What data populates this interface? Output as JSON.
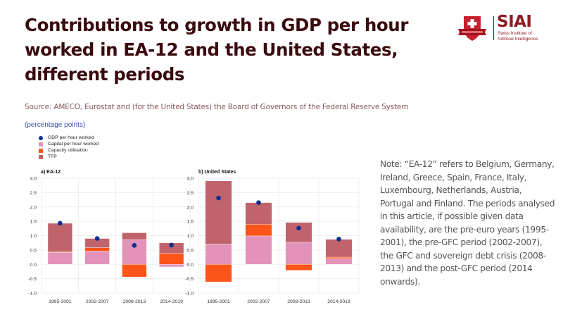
{
  "header": {
    "title": "Contributions to growth in GDP per hour worked in EA-12 and the United States, different periods",
    "source": "Source: AMECO, Eurostat and (for the United States) the Board of Governors of the Federal Reserve System",
    "units": "(percentage points)"
  },
  "logo": {
    "name": "SIAI",
    "subtitle_line1": "Swiss Institute of",
    "subtitle_line2": "Artificial Intelligence",
    "icon": "swiss-cross-shield-icon"
  },
  "note": "Note: “EA-12” refers to Belgium, Germany, Ireland, Greece, Spain, France, Italy, Luxembourg, Netherlands, Austria, Portugal and Finland. The periods analysed in this article, if possible given data availability, are the pre-euro years (1995-2001), the pre-GFC period (2002-2007), the GFC and sovereign debt crisis (2008-2013) and the post-GFC period (2014 onwards).",
  "colors": {
    "gdp": "#0a2f8f",
    "capital": "#e393b9",
    "capacity": "#fc5419",
    "tfp": "#c1636b",
    "title": "#3a0a0e",
    "brand": "#8f1a24"
  },
  "legend": [
    {
      "key": "gdp",
      "label": "GDP per hour worked",
      "marker": "dot"
    },
    {
      "key": "capital",
      "label": "Capital per hour worked",
      "marker": "square"
    },
    {
      "key": "capacity",
      "label": "Capacity utilisation",
      "marker": "square"
    },
    {
      "key": "tfp",
      "label": "TFP",
      "marker": "square"
    }
  ],
  "chart_data": [
    {
      "type": "bar",
      "stacked": true,
      "title": "a) EA-12",
      "categories": [
        "1995-2001",
        "2002-2007",
        "2008-2013",
        "2014-2019"
      ],
      "ylim": [
        -1.0,
        3.0
      ],
      "yticks": [
        "3.0",
        "2.5",
        "2.0",
        "1.5",
        "1.0",
        "0.5",
        "0.0",
        "-0.5",
        "-1.0"
      ],
      "grid": true,
      "series": [
        {
          "name": "Capital per hour worked",
          "key": "capital",
          "values": [
            0.42,
            0.46,
            0.86,
            -0.09
          ]
        },
        {
          "name": "Capacity utilisation",
          "key": "capacity",
          "values": [
            0.02,
            0.12,
            -0.44,
            0.38
          ]
        },
        {
          "name": "TFP",
          "key": "tfp",
          "values": [
            0.99,
            0.32,
            0.24,
            0.37
          ]
        }
      ],
      "points": {
        "name": "GDP per hour worked",
        "key": "gdp",
        "values": [
          1.43,
          0.9,
          0.66,
          0.67
        ]
      }
    },
    {
      "type": "bar",
      "stacked": true,
      "title": "b) United States",
      "categories": [
        "1995-2001",
        "2002-2007",
        "2008-2013",
        "2014-2019"
      ],
      "ylim": [
        -1.0,
        3.0
      ],
      "yticks": [
        "3.0",
        "2.5",
        "2.0",
        "1.5",
        "1.0",
        "0.5",
        "0.0",
        "-0.5",
        "-1.0"
      ],
      "grid": true,
      "series": [
        {
          "name": "Capital per hour worked",
          "key": "capital",
          "values": [
            0.71,
            0.99,
            0.77,
            0.2
          ]
        },
        {
          "name": "Capacity utilisation",
          "key": "capacity",
          "values": [
            -0.61,
            0.41,
            -0.21,
            0.05
          ]
        },
        {
          "name": "TFP",
          "key": "tfp",
          "values": [
            2.2,
            0.75,
            0.69,
            0.62
          ]
        }
      ],
      "points": {
        "name": "GDP per hour worked",
        "key": "gdp",
        "values": [
          2.31,
          2.15,
          1.26,
          0.88
        ]
      }
    }
  ]
}
